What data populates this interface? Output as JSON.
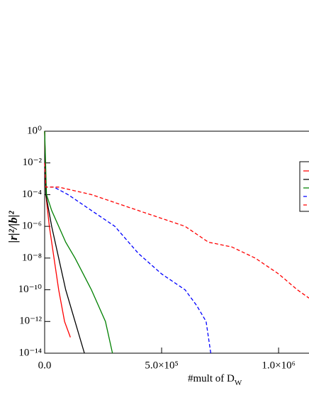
{
  "chart_data": {
    "type": "line",
    "x_label": "#mult of D",
    "x_label_subscript": "W",
    "y_label": "|r|²/|b|²",
    "yscale": "log",
    "xlim": [
      0,
      1130000
    ],
    "ylim": [
      1e-14,
      1
    ],
    "xticks": [
      {
        "value": 0,
        "label": "0.0"
      },
      {
        "value": 500000,
        "label": "5.0×10⁵"
      },
      {
        "value": 1000000,
        "label": "1.0×10⁶"
      }
    ],
    "yticks": [
      {
        "value": 1,
        "label": "10⁰"
      },
      {
        "value": 0.01,
        "label": "10⁻²"
      },
      {
        "value": 0.0001,
        "label": "10⁻⁴"
      },
      {
        "value": 1e-06,
        "label": "10⁻⁶"
      },
      {
        "value": 1e-08,
        "label": "10⁻⁸"
      },
      {
        "value": 1e-10,
        "label": "10⁻¹⁰"
      },
      {
        "value": 1e-12,
        "label": "10⁻¹²"
      },
      {
        "value": 1e-14,
        "label": "10⁻¹⁴"
      }
    ],
    "series": [
      {
        "color": "#ff0000",
        "dash": false,
        "x": [
          0,
          5000,
          20000,
          40000,
          60000,
          85000,
          110000
        ],
        "values": [
          1,
          0.0001,
          1e-06,
          1e-08,
          1e-10,
          1e-12,
          1e-13
        ]
      },
      {
        "color": "#000000",
        "dash": false,
        "x": [
          0,
          5000,
          30000,
          60000,
          90000,
          130000,
          170000
        ],
        "values": [
          1,
          0.0001,
          1e-06,
          1e-08,
          1e-10,
          1e-12,
          1e-14
        ]
      },
      {
        "color": "#008000",
        "dash": false,
        "x": [
          0,
          8000,
          30000,
          90000,
          130000,
          200000,
          260000,
          290000
        ],
        "values": [
          1,
          0.0001,
          1e-05,
          1e-07,
          1e-08,
          1e-10,
          1e-12,
          1e-14
        ]
      },
      {
        "color": "#0000ff",
        "dash": true,
        "x": [
          0,
          5000,
          40000,
          100000,
          200000,
          300000,
          400000,
          500000,
          600000,
          650000,
          690000,
          710000
        ],
        "values": [
          0.01,
          0.0003,
          0.0003,
          0.0001,
          1e-05,
          1e-06,
          2e-08,
          1e-09,
          1e-10,
          1e-11,
          1e-12,
          1e-14
        ]
      },
      {
        "color": "#ff0000",
        "dash": true,
        "x": [
          0,
          5000,
          60000,
          200000,
          400000,
          600000,
          700000,
          800000,
          900000,
          1000000,
          1080000,
          1130000
        ],
        "values": [
          0.01,
          0.0003,
          0.0003,
          0.0001,
          1e-05,
          1e-06,
          1e-07,
          5e-08,
          1e-08,
          1e-09,
          1e-10,
          3e-11
        ]
      }
    ]
  }
}
